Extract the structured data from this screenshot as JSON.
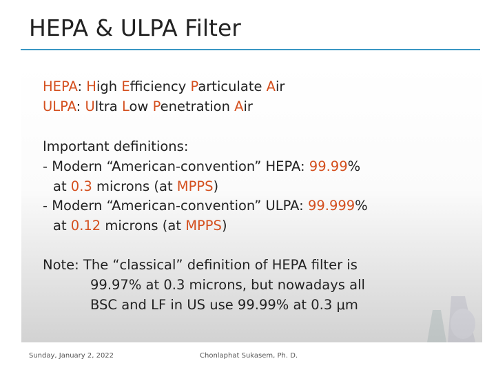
{
  "title": "HEPA & ULPA Filter",
  "lines": [
    {
      "segments": [
        {
          "text": "HEPA",
          "color": "#d4501f"
        },
        {
          "text": ": ",
          "color": "#222222"
        },
        {
          "text": "H",
          "color": "#d4501f"
        },
        {
          "text": "igh ",
          "color": "#222222"
        },
        {
          "text": "E",
          "color": "#d4501f"
        },
        {
          "text": "fficiency ",
          "color": "#222222"
        },
        {
          "text": "P",
          "color": "#d4501f"
        },
        {
          "text": "articulate ",
          "color": "#222222"
        },
        {
          "text": "A",
          "color": "#d4501f"
        },
        {
          "text": "ir",
          "color": "#222222"
        }
      ]
    },
    {
      "segments": [
        {
          "text": "ULPA",
          "color": "#d4501f"
        },
        {
          "text": ": ",
          "color": "#222222"
        },
        {
          "text": "U",
          "color": "#d4501f"
        },
        {
          "text": "ltra ",
          "color": "#222222"
        },
        {
          "text": "L",
          "color": "#d4501f"
        },
        {
          "text": "ow ",
          "color": "#222222"
        },
        {
          "text": "P",
          "color": "#d4501f"
        },
        {
          "text": "enetration ",
          "color": "#222222"
        },
        {
          "text": "A",
          "color": "#d4501f"
        },
        {
          "text": "ir",
          "color": "#222222"
        }
      ]
    },
    {
      "segments": [
        {
          "text": "Important definitions:",
          "color": "#222222"
        }
      ]
    },
    {
      "segments": [
        {
          "text": "- Modern “American-convention” HEPA: ",
          "color": "#222222"
        },
        {
          "text": "99.99",
          "color": "#d4501f"
        },
        {
          "text": "%",
          "color": "#222222"
        }
      ]
    },
    {
      "segments": [
        {
          "text": "at ",
          "color": "#222222"
        },
        {
          "text": "0.3",
          "color": "#d4501f"
        },
        {
          "text": " microns (at ",
          "color": "#222222"
        },
        {
          "text": "MPPS",
          "color": "#d4501f"
        },
        {
          "text": ")",
          "color": "#222222"
        }
      ]
    },
    {
      "segments": [
        {
          "text": "- Modern “American-convention” ULPA: ",
          "color": "#222222"
        },
        {
          "text": "99.999",
          "color": "#d4501f"
        },
        {
          "text": "%",
          "color": "#222222"
        }
      ]
    },
    {
      "segments": [
        {
          "text": "at ",
          "color": "#222222"
        },
        {
          "text": "0.12",
          "color": "#d4501f"
        },
        {
          "text": " microns (at ",
          "color": "#222222"
        },
        {
          "text": "MPPS",
          "color": "#d4501f"
        },
        {
          "text": ")",
          "color": "#222222"
        }
      ]
    },
    {
      "segments": [
        {
          "text": "Note: The “classical” definition of HEPA filter is",
          "color": "#222222"
        }
      ]
    },
    {
      "segments": [
        {
          "text": "99.97% at 0.3 microns, but nowadays all",
          "color": "#222222"
        }
      ]
    },
    {
      "segments": [
        {
          "text": "BSC and LF in US use 99.99% at 0.3 μm",
          "color": "#222222"
        }
      ]
    }
  ],
  "footer": {
    "date": "Sunday, January 2, 2022",
    "author": "Chonlaphat Sukasem, Ph. D."
  }
}
